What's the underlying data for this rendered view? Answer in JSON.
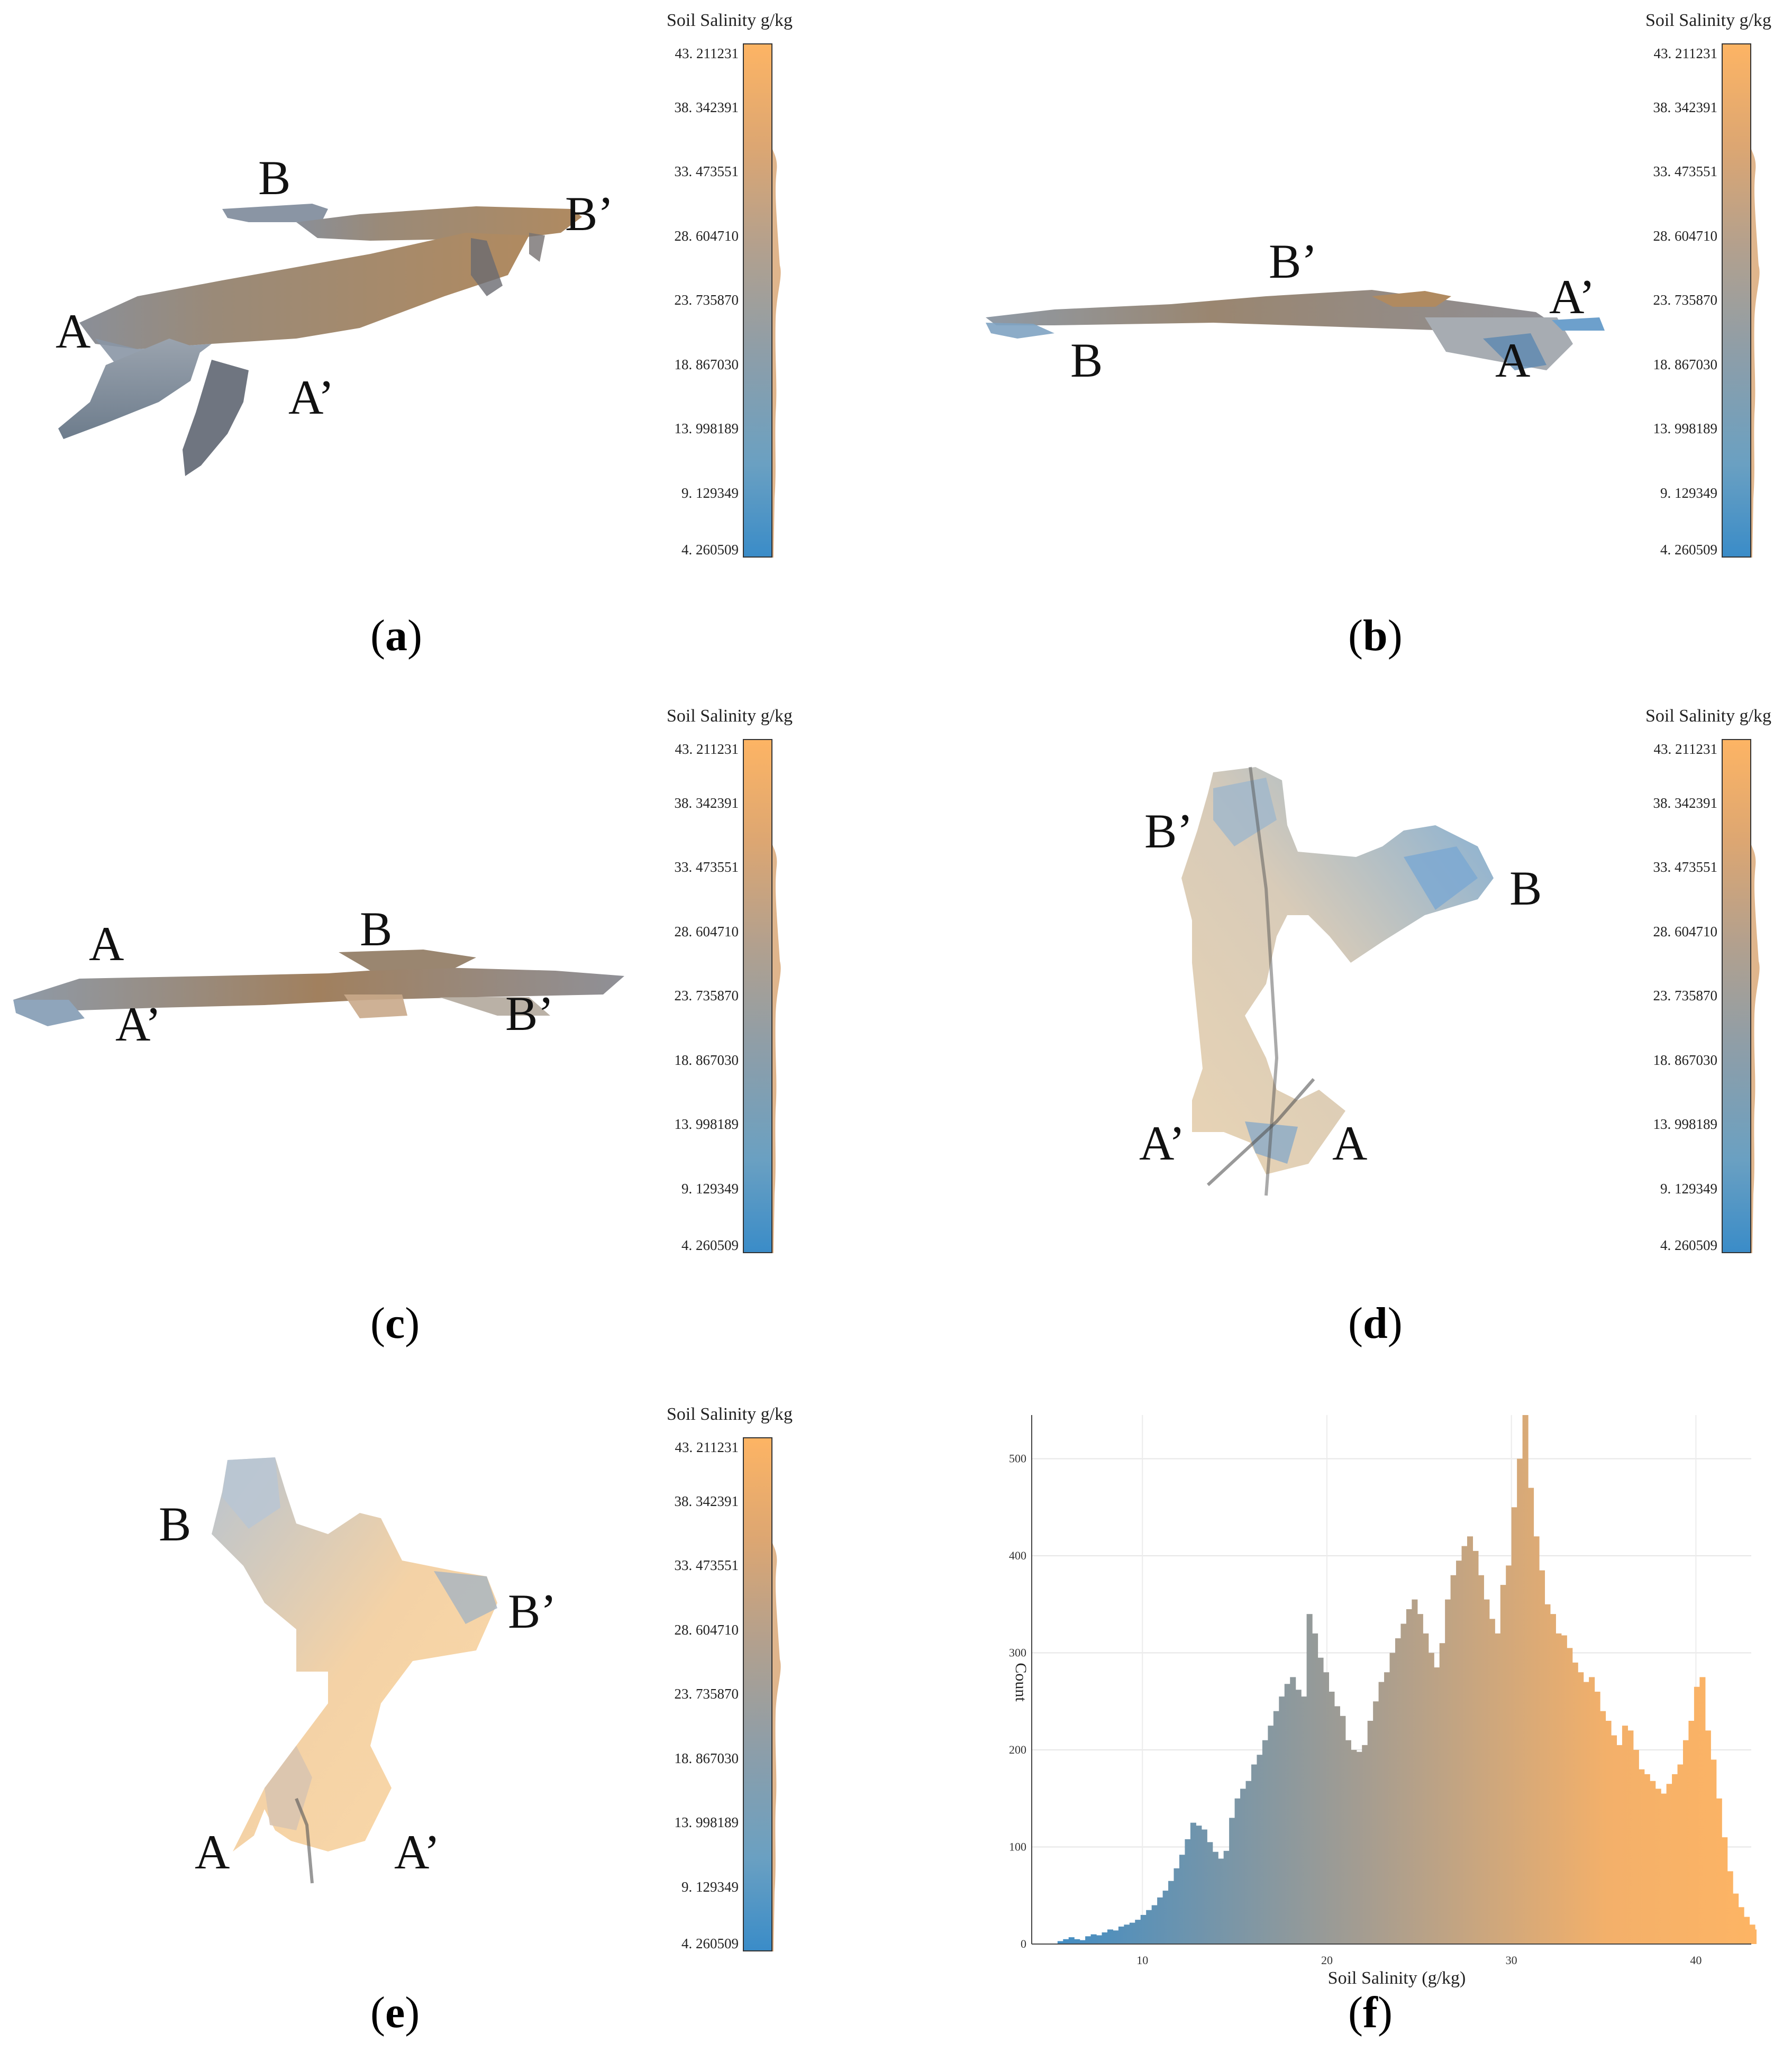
{
  "colorbar": {
    "title": "Soil Salinity g/kg",
    "ticks": [
      "43. 211231",
      "38. 342391",
      "33. 473551",
      "28. 604710",
      "23. 735870",
      "18. 867030",
      "13. 998189",
      "9. 129349",
      "4. 260509"
    ],
    "min": 4.260509,
    "max": 43.211231,
    "colors": {
      "low": "#3a8cc8",
      "mid": "#a29c92",
      "high": "#fdb464"
    }
  },
  "panels": [
    {
      "id": "a",
      "caption": "a",
      "labels": [
        "A",
        "A’",
        "B",
        "B’"
      ]
    },
    {
      "id": "b",
      "caption": "b",
      "labels": [
        "B",
        "B’",
        "A",
        "A’"
      ]
    },
    {
      "id": "c",
      "caption": "c",
      "labels": [
        "A",
        "A’",
        "B",
        "B’"
      ]
    },
    {
      "id": "d",
      "caption": "d",
      "labels": [
        "B’",
        "B",
        "A’",
        "A"
      ]
    },
    {
      "id": "e",
      "caption": "e",
      "labels": [
        "B",
        "B’",
        "A",
        "A’"
      ]
    },
    {
      "id": "f",
      "caption": "f"
    }
  ],
  "chart_data": {
    "type": "bar",
    "title": "",
    "xlabel": "Soil Salinity (g/kg)",
    "ylabel": "Count",
    "xlim": [
      4,
      43
    ],
    "ylim": [
      0,
      545
    ],
    "xticks": [
      10,
      20,
      30,
      40
    ],
    "yticks": [
      0,
      100,
      200,
      300,
      400,
      500
    ],
    "bin_width": 0.3,
    "x_start": 5.4,
    "values": [
      3,
      5,
      7,
      5,
      4,
      8,
      10,
      9,
      12,
      15,
      14,
      18,
      20,
      22,
      25,
      30,
      35,
      40,
      48,
      55,
      65,
      78,
      92,
      108,
      125,
      122,
      118,
      105,
      95,
      88,
      96,
      130,
      150,
      160,
      168,
      185,
      195,
      210,
      225,
      240,
      255,
      268,
      275,
      262,
      255,
      340,
      320,
      295,
      280,
      260,
      245,
      235,
      210,
      200,
      198,
      205,
      230,
      250,
      270,
      280,
      300,
      315,
      330,
      345,
      355,
      340,
      320,
      300,
      285,
      310,
      355,
      380,
      395,
      410,
      420,
      405,
      380,
      355,
      335,
      320,
      370,
      390,
      450,
      500,
      545,
      470,
      420,
      385,
      350,
      340,
      320,
      318,
      305,
      290,
      280,
      270,
      275,
      260,
      240,
      230,
      215,
      205,
      225,
      220,
      200,
      180,
      175,
      168,
      160,
      155,
      165,
      175,
      185,
      210,
      230,
      265,
      275,
      220,
      190,
      150,
      110,
      75,
      52,
      38,
      28,
      20,
      15,
      12,
      10,
      8,
      7,
      6,
      5,
      4,
      3,
      2,
      2,
      2,
      2,
      1,
      1,
      1,
      1,
      1,
      1,
      1,
      1,
      1,
      1,
      2,
      2,
      1,
      1
    ],
    "colors": {
      "low": "#3a8cc8",
      "mid": "#a29c92",
      "high": "#f3b06a"
    }
  }
}
